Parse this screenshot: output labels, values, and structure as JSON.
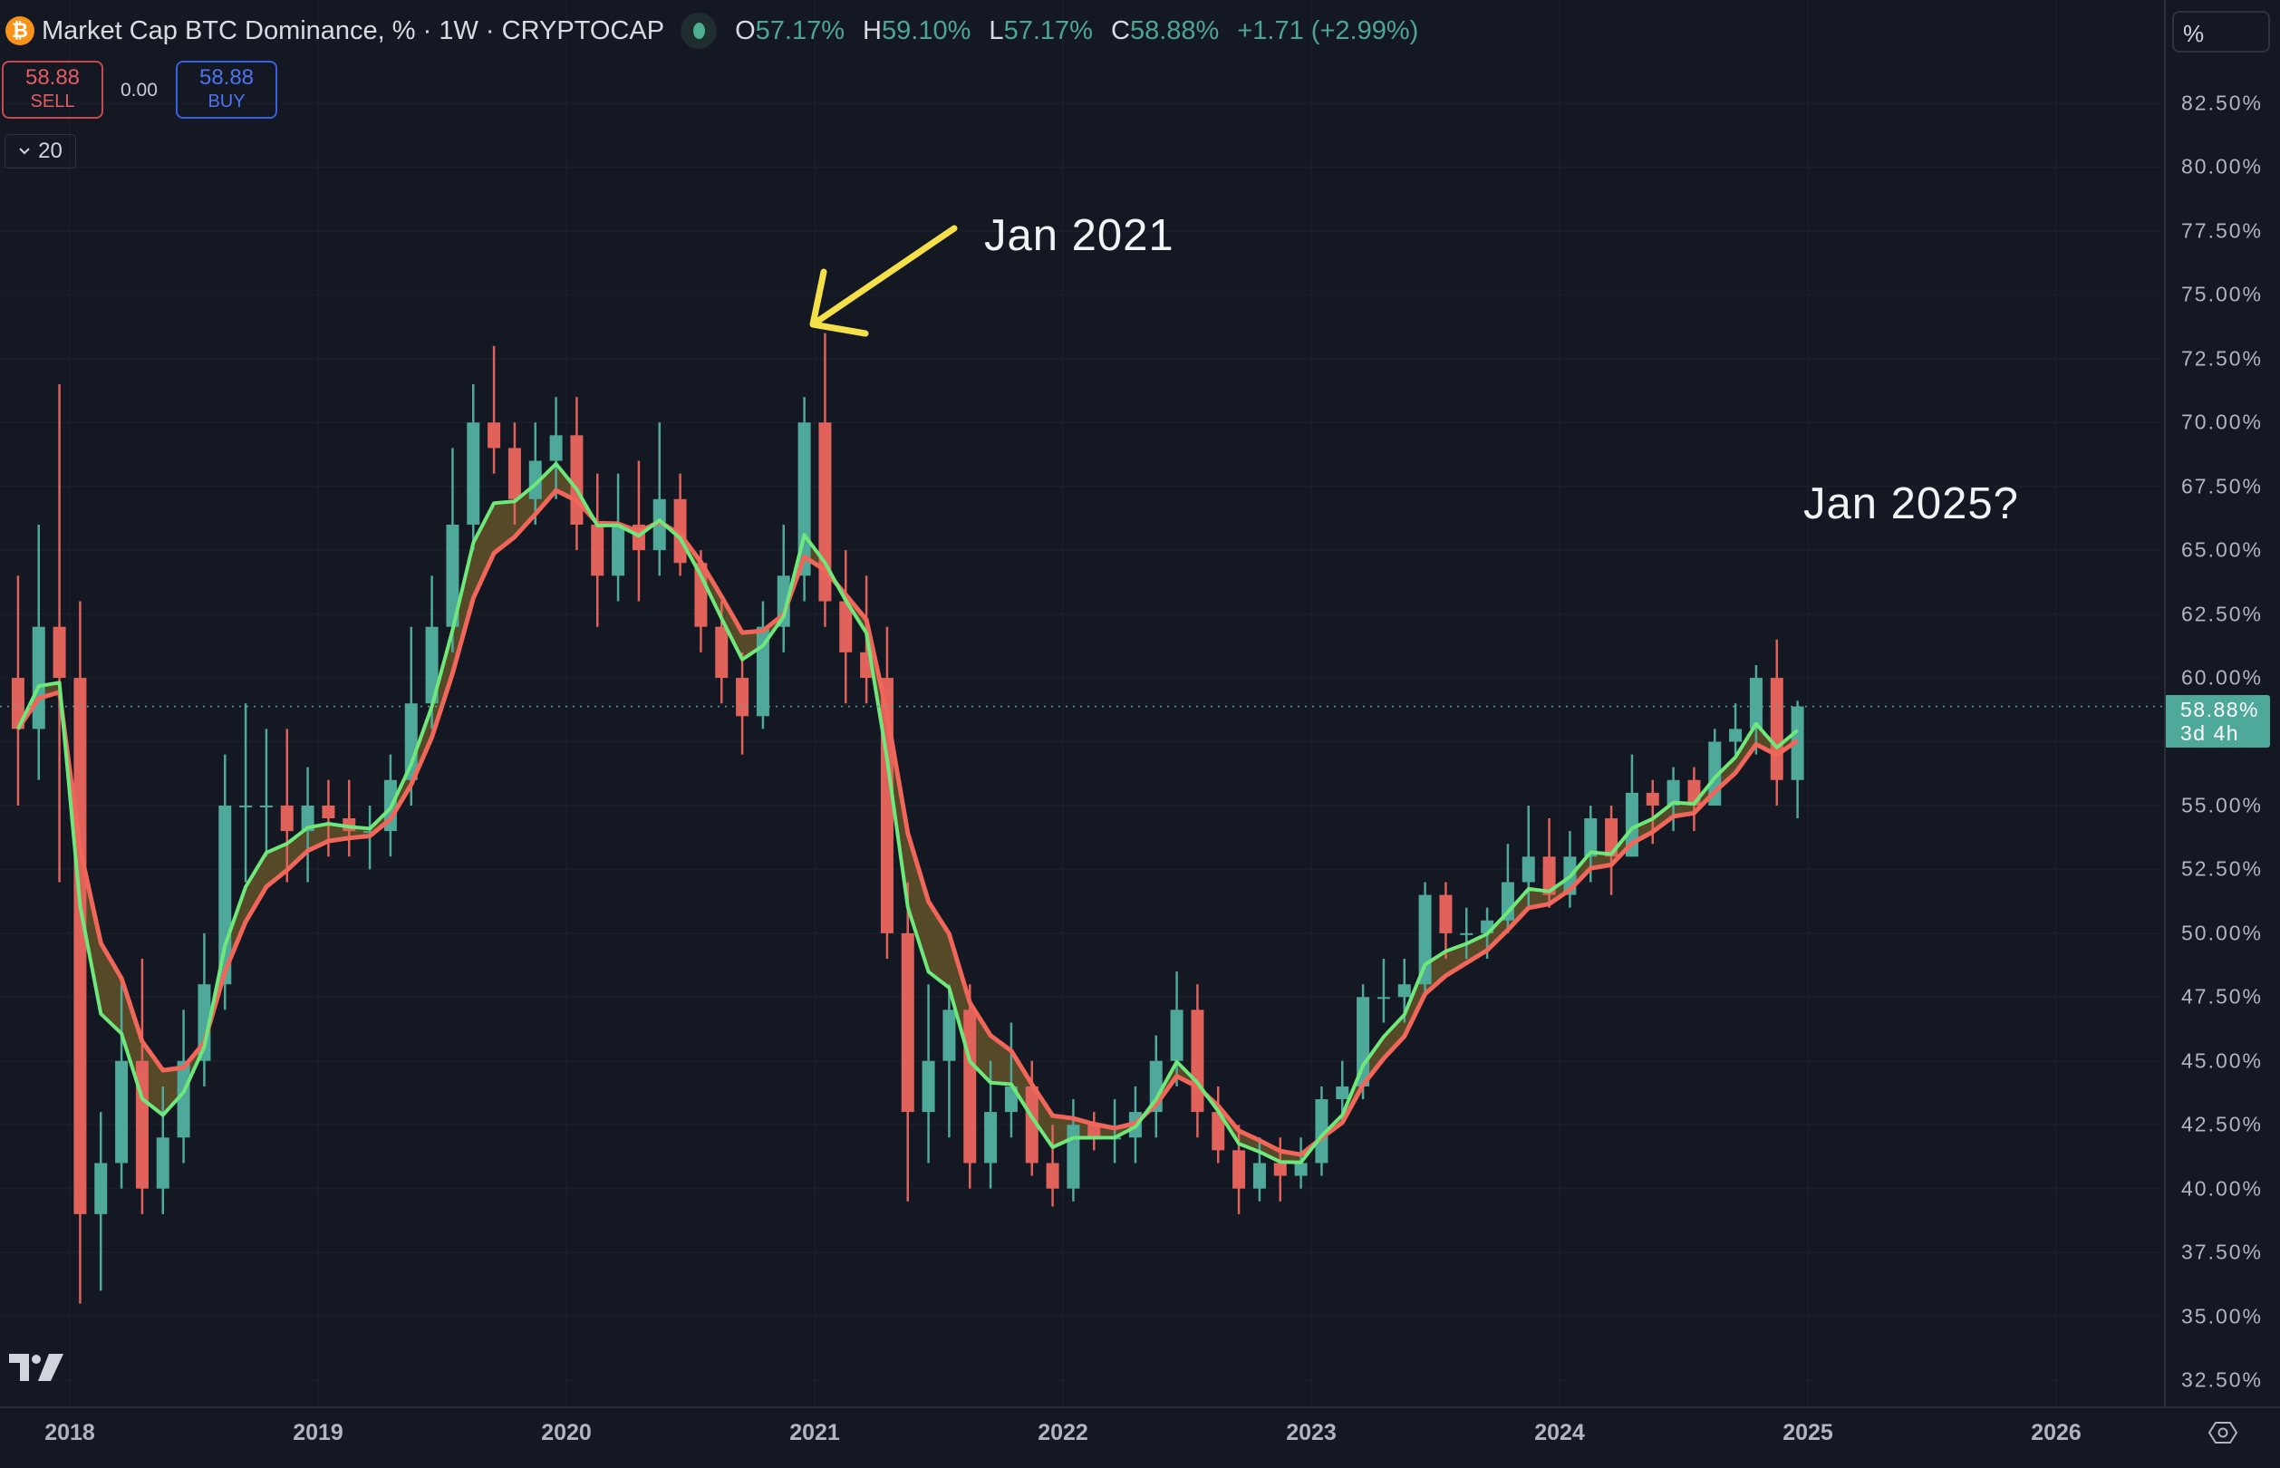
{
  "header": {
    "symbol_icon": "bitcoin-icon",
    "title": "Market Cap BTC Dominance, % · 1W · CRYPTOCAP",
    "status_icon": "market-status-dot-icon",
    "ohlc": [
      {
        "key": "O",
        "value": "57.17%"
      },
      {
        "key": "H",
        "value": "59.10%"
      },
      {
        "key": "L",
        "value": "57.17%"
      },
      {
        "key": "C",
        "value": "58.88%"
      }
    ],
    "change": "+1.71 (+2.99%)"
  },
  "trade": {
    "sell_price": "58.88",
    "sell_label": "SELL",
    "spread": "0.00",
    "buy_price": "58.88",
    "buy_label": "BUY"
  },
  "indicator_toggle": {
    "icon": "chevron-down-icon",
    "label": "20"
  },
  "price_axis": {
    "unit_button": "%",
    "ticks": [
      "82.50%",
      "80.00%",
      "77.50%",
      "75.00%",
      "72.50%",
      "70.00%",
      "67.50%",
      "65.00%",
      "62.50%",
      "60.00%",
      "55.00%",
      "52.50%",
      "50.00%",
      "47.50%",
      "45.00%",
      "42.50%",
      "40.00%",
      "37.50%",
      "35.00%",
      "32.50%"
    ],
    "last_price": "58.88%",
    "countdown": "3d 4h"
  },
  "time_axis": {
    "ticks": [
      "2018",
      "2019",
      "2020",
      "2021",
      "2022",
      "2023",
      "2024",
      "2025",
      "2026"
    ],
    "settings_icon": "gear-icon"
  },
  "annotations": {
    "jan2021": "Jan 2021",
    "jan2025": "Jan 2025?"
  },
  "colors": {
    "background": "#141823",
    "up": "#4ea99b",
    "down": "#e0625a",
    "ma_fast": "#6ee87a",
    "ma_slow": "#f0665a",
    "ribbon_fill": "#6b5a2a",
    "arrow": "#f6e04a"
  },
  "chart_data": {
    "type": "candlestick",
    "symbol": "CRYPTOCAP:BTC.D",
    "ylabel_unit": "%",
    "ylim": [
      31.5,
      84
    ],
    "xlim": [
      "2017-09",
      "2026-06"
    ],
    "grid": true,
    "last_value": 58.88,
    "overlays": [
      "moving average (fast, green)",
      "moving average (slow, red)"
    ],
    "columns": [
      "month",
      "open",
      "high",
      "low",
      "close"
    ],
    "candles": [
      [
        "2017-10",
        60,
        64,
        55,
        58
      ],
      [
        "2017-11",
        58,
        66,
        56,
        62
      ],
      [
        "2017-12",
        62,
        71.5,
        52,
        60
      ],
      [
        "2018-01",
        60,
        63,
        35.5,
        39
      ],
      [
        "2018-02",
        39,
        43,
        36,
        41
      ],
      [
        "2018-03",
        41,
        48,
        40,
        45
      ],
      [
        "2018-04",
        45,
        49,
        39,
        40
      ],
      [
        "2018-05",
        40,
        44,
        39,
        42
      ],
      [
        "2018-06",
        42,
        47,
        41,
        45
      ],
      [
        "2018-07",
        45,
        50,
        44,
        48
      ],
      [
        "2018-08",
        48,
        57,
        47,
        55
      ],
      [
        "2018-09",
        55,
        59,
        52,
        55
      ],
      [
        "2018-10",
        55,
        58,
        53,
        55
      ],
      [
        "2018-11",
        55,
        58,
        52,
        54
      ],
      [
        "2018-12",
        54,
        56.5,
        52,
        55
      ],
      [
        "2019-01",
        55,
        56,
        53,
        54.5
      ],
      [
        "2019-02",
        54.5,
        56,
        53,
        54
      ],
      [
        "2019-03",
        54,
        55,
        52.5,
        54
      ],
      [
        "2019-04",
        54,
        57,
        53,
        56
      ],
      [
        "2019-05",
        56,
        62,
        55,
        59
      ],
      [
        "2019-06",
        59,
        64,
        58,
        62
      ],
      [
        "2019-07",
        62,
        69,
        61,
        66
      ],
      [
        "2019-08",
        66,
        71.5,
        65,
        70
      ],
      [
        "2019-09",
        70,
        73,
        68,
        69
      ],
      [
        "2019-10",
        69,
        70,
        66,
        67
      ],
      [
        "2019-11",
        67,
        70,
        66,
        68.5
      ],
      [
        "2019-12",
        68.5,
        71,
        67,
        69.5
      ],
      [
        "2020-01",
        69.5,
        71,
        65,
        66
      ],
      [
        "2020-02",
        66,
        68,
        62,
        64
      ],
      [
        "2020-03",
        64,
        68,
        63,
        66
      ],
      [
        "2020-04",
        66,
        68.5,
        63,
        65
      ],
      [
        "2020-05",
        65,
        70,
        64,
        67
      ],
      [
        "2020-06",
        67,
        68,
        64,
        64.5
      ],
      [
        "2020-07",
        64.5,
        65,
        61,
        62
      ],
      [
        "2020-08",
        62,
        63,
        59,
        60
      ],
      [
        "2020-09",
        60,
        61,
        57,
        58.5
      ],
      [
        "2020-10",
        58.5,
        63,
        58,
        62
      ],
      [
        "2020-11",
        62,
        66,
        61,
        64
      ],
      [
        "2020-12",
        64,
        71,
        63,
        70
      ],
      [
        "2021-01",
        70,
        73.5,
        62,
        63
      ],
      [
        "2021-02",
        63,
        65,
        59,
        61
      ],
      [
        "2021-03",
        61,
        64,
        59,
        60
      ],
      [
        "2021-04",
        60,
        62,
        49,
        50
      ],
      [
        "2021-05",
        50,
        52,
        39.5,
        43
      ],
      [
        "2021-06",
        43,
        48,
        41,
        45
      ],
      [
        "2021-07",
        45,
        48,
        42,
        47
      ],
      [
        "2021-08",
        47,
        48,
        40,
        41
      ],
      [
        "2021-09",
        41,
        45,
        40,
        43
      ],
      [
        "2021-10",
        43,
        46.5,
        42,
        44
      ],
      [
        "2021-11",
        44,
        45,
        40.5,
        41
      ],
      [
        "2021-12",
        41,
        42.5,
        39.3,
        40
      ],
      [
        "2022-01",
        40,
        43.5,
        39.5,
        42.5
      ],
      [
        "2022-02",
        42.5,
        43,
        41.5,
        42
      ],
      [
        "2022-03",
        42,
        43.5,
        41,
        42
      ],
      [
        "2022-04",
        42,
        44,
        41,
        43
      ],
      [
        "2022-05",
        43,
        46,
        42,
        45
      ],
      [
        "2022-06",
        45,
        48.5,
        44,
        47
      ],
      [
        "2022-07",
        47,
        48,
        42,
        43
      ],
      [
        "2022-08",
        43,
        44,
        41,
        41.5
      ],
      [
        "2022-09",
        41.5,
        42.5,
        39,
        40
      ],
      [
        "2022-10",
        40,
        42,
        39.5,
        41
      ],
      [
        "2022-11",
        41,
        42,
        39.5,
        40.5
      ],
      [
        "2022-12",
        40.5,
        42,
        40,
        41
      ],
      [
        "2023-01",
        41,
        44,
        40.5,
        43.5
      ],
      [
        "2023-02",
        43.5,
        45,
        42.5,
        44
      ],
      [
        "2023-03",
        44,
        48,
        43.5,
        47.5
      ],
      [
        "2023-04",
        47.5,
        49,
        46.5,
        47.5
      ],
      [
        "2023-05",
        47.5,
        49,
        46.5,
        48
      ],
      [
        "2023-06",
        48,
        52,
        47.5,
        51.5
      ],
      [
        "2023-07",
        51.5,
        52,
        49,
        50
      ],
      [
        "2023-08",
        50,
        51,
        49,
        50
      ],
      [
        "2023-09",
        50,
        51,
        49,
        50.5
      ],
      [
        "2023-10",
        50.5,
        53.5,
        50,
        52
      ],
      [
        "2023-11",
        52,
        55,
        51,
        53
      ],
      [
        "2023-12",
        53,
        54.5,
        51,
        51.5
      ],
      [
        "2024-01",
        51.5,
        54,
        51,
        53
      ],
      [
        "2024-02",
        53,
        55,
        52,
        54.5
      ],
      [
        "2024-03",
        54.5,
        55,
        51.5,
        53
      ],
      [
        "2024-04",
        53,
        57,
        53,
        55.5
      ],
      [
        "2024-05",
        55.5,
        56,
        53.5,
        55
      ],
      [
        "2024-06",
        55,
        56.5,
        54,
        56
      ],
      [
        "2024-07",
        56,
        56.5,
        54,
        55
      ],
      [
        "2024-08",
        55,
        58,
        55,
        57.5
      ],
      [
        "2024-09",
        57.5,
        59,
        57,
        58
      ],
      [
        "2024-10",
        58,
        60.5,
        57,
        60
      ],
      [
        "2024-11",
        60,
        61.5,
        55,
        56
      ],
      [
        "2024-12",
        56,
        59.1,
        54.5,
        58.88
      ]
    ]
  }
}
